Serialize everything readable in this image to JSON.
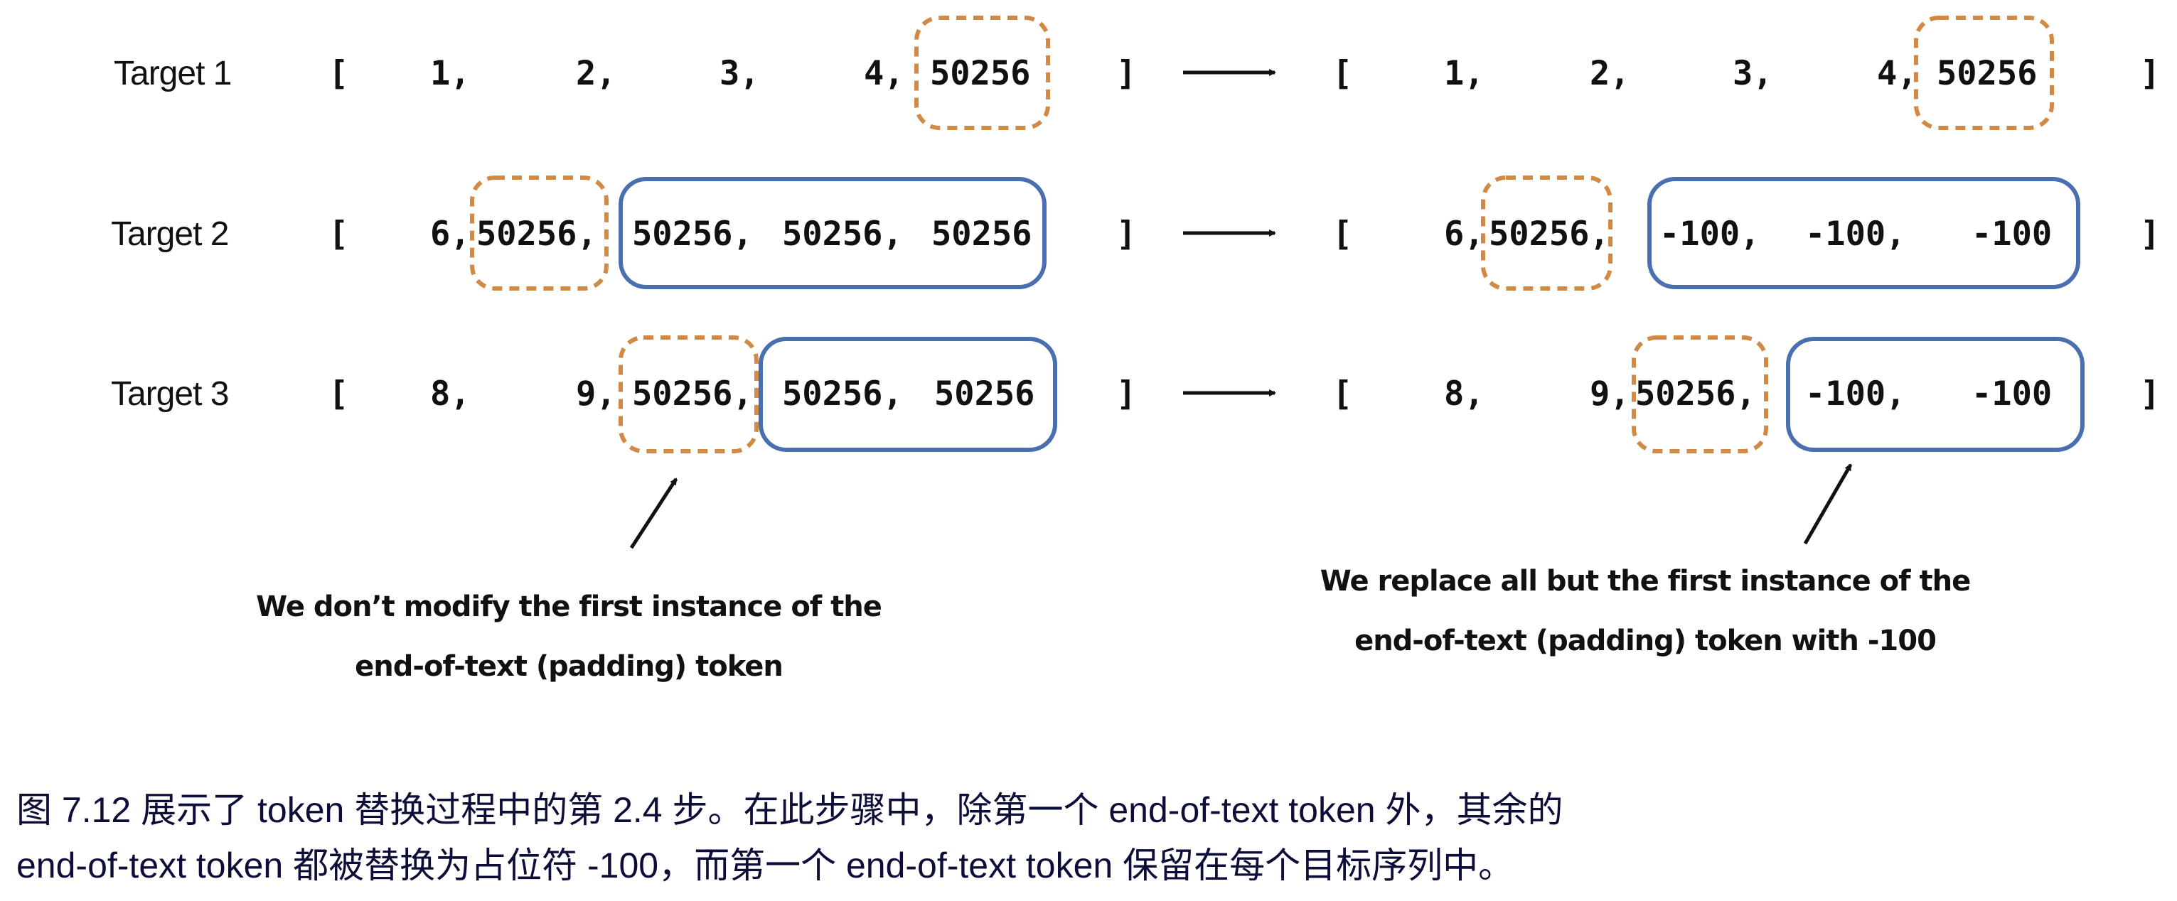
{
  "rows": [
    {
      "label": "Target 1",
      "open": "[",
      "close": "]",
      "left": [
        "1,",
        "2,",
        "3,",
        "4,",
        "50256"
      ],
      "right": [
        "1,",
        "2,",
        "3,",
        "4,",
        "50256"
      ]
    },
    {
      "label": "Target 2",
      "open": "[",
      "close": "]",
      "left": [
        "6,",
        "50256,",
        "50256,",
        "50256,",
        "50256"
      ],
      "right": [
        "6,",
        "50256,",
        "-100,",
        "-100,",
        "-100"
      ]
    },
    {
      "label": "Target 3",
      "open": "[",
      "close": "]",
      "left": [
        "8,",
        "9,",
        "50256,",
        "50256,",
        "50256"
      ],
      "right": [
        "8,",
        "9,",
        "50256,",
        "-100,",
        "-100"
      ]
    }
  ],
  "notes": {
    "left": [
      "We don’t modify the first instance of the",
      "end-of-text (padding) token"
    ],
    "right": [
      "We replace all but the first instance of the",
      "end-of-text (padding) token with -100"
    ]
  },
  "caption": [
    "图 7.12 展示了 token 替换过程中的第 2.4 步。在此步骤中，除第一个 end-of-text token 外，其余的",
    "end-of-text token 都被替换为占位符 -100，而第一个 end-of-text token 保留在每个目标序列中。"
  ],
  "colors": {
    "kept_token_box": "#d08a45",
    "replaced_box": "#4a6fb0",
    "caption_text": "#0d0d3a"
  }
}
